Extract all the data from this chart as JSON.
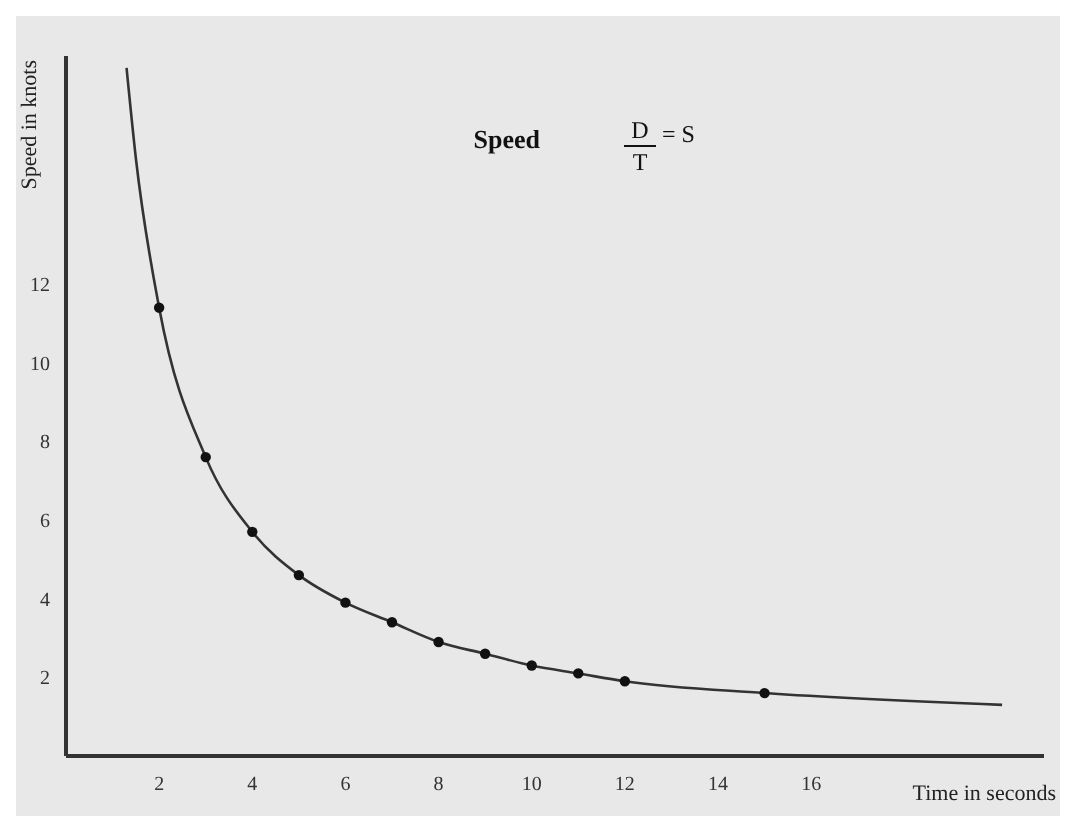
{
  "chart_data": {
    "type": "line",
    "title": "Speed",
    "annotations": [
      "D",
      "T",
      "= S"
    ],
    "xlabel": "Time in seconds",
    "ylabel": "Speed in knots",
    "xlim": [
      0,
      21
    ],
    "ylim": [
      0,
      17.8
    ],
    "xticks": [
      2,
      4,
      6,
      8,
      10,
      12,
      14,
      16
    ],
    "yticks": [
      2,
      4,
      6,
      8,
      10,
      12
    ],
    "grid": false,
    "series": [
      {
        "color": "#333333",
        "marker": "none",
        "x": [
          1.3,
          1.5,
          2,
          3,
          4,
          5,
          6,
          7,
          8,
          9,
          10,
          11,
          12,
          15,
          20.1
        ],
        "values": [
          17.5,
          15.2,
          11.4,
          7.6,
          5.7,
          4.6,
          3.9,
          3.4,
          2.9,
          2.6,
          2.3,
          2.1,
          1.9,
          1.6,
          1.3
        ]
      },
      {
        "type": "scatter",
        "color": "#111111",
        "marker": "circle",
        "x": [
          2,
          3,
          4,
          5,
          6,
          7,
          8,
          9,
          10,
          11,
          12,
          15
        ],
        "values": [
          11.4,
          7.6,
          5.7,
          4.6,
          3.9,
          3.4,
          2.9,
          2.6,
          2.3,
          2.1,
          1.9,
          1.6
        ]
      }
    ]
  }
}
